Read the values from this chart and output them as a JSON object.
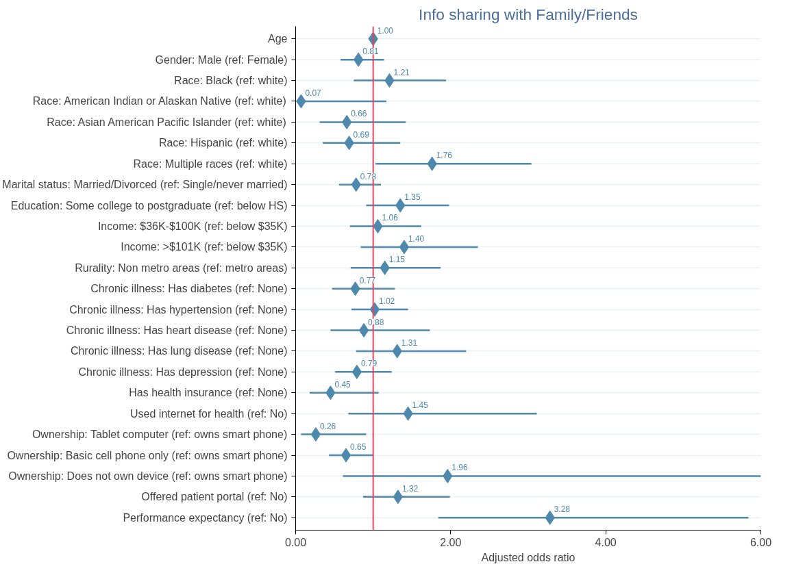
{
  "chart_data": {
    "type": "scatter",
    "orientation": "horizontal",
    "title": "Info sharing with Family/Friends",
    "xlabel": "Adjusted odds ratio",
    "categories": [
      "Age",
      "Gender: Male (ref: Female)",
      "Race: Black (ref: white)",
      "Race: American Indian or Alaskan Native (ref: white)",
      "Race: Asian American Pacific Islander (ref: white)",
      "Race: Hispanic (ref: white)",
      "Race: Multiple races (ref: white)",
      "Marital status: Married/Divorced (ref: Single/never married)",
      "Education: Some college to postgraduate (ref: below HS)",
      "Income: $36K-$100K (ref: below $35K)",
      "Income: >$101K (ref: below $35K)",
      "Rurality: Non metro areas (ref: metro areas)",
      "Chronic illness: Has diabetes (ref: None)",
      "Chronic illness: Has hypertension (ref: None)",
      "Chronic illness: Has heart disease (ref: None)",
      "Chronic illness: Has lung disease (ref: None)",
      "Chronic illness: Has depression (ref: None)",
      "Has health insurance (ref: None)",
      "Used internet for health (ref: No)",
      "Ownership: Tablet computer (ref: owns smart phone)",
      "Ownership: Basic cell phone only (ref: owns smart phone)",
      "Ownership: Does not own device (ref: owns smart phone)",
      "Offered patient portal (ref: No)",
      "Performance expectancy (ref: No)"
    ],
    "values": [
      1.0,
      0.81,
      1.21,
      0.07,
      0.66,
      0.69,
      1.76,
      0.78,
      1.35,
      1.06,
      1.4,
      1.15,
      0.77,
      1.02,
      0.88,
      1.31,
      0.79,
      0.45,
      1.45,
      0.26,
      0.65,
      1.96,
      1.32,
      3.28
    ],
    "value_labels": [
      "1.00",
      "0.81",
      "1.21",
      "0.07",
      "0.66",
      "0.69",
      "1.76",
      "0.78",
      "1.35",
      "1.06",
      "1.40",
      "1.15",
      "0.77",
      "1.02",
      "0.88",
      "1.31",
      "0.79",
      "0.45",
      "1.45",
      "0.26",
      "0.65",
      "1.96",
      "1.32",
      "3.28"
    ],
    "errors": [
      null,
      [
        0.58,
        1.14
      ],
      [
        0.75,
        1.94
      ],
      [
        0.01,
        1.17
      ],
      [
        0.31,
        1.42
      ],
      [
        0.35,
        1.35
      ],
      [
        1.03,
        3.04
      ],
      [
        0.56,
        1.1
      ],
      [
        0.91,
        1.98
      ],
      [
        0.7,
        1.62
      ],
      [
        0.84,
        2.35
      ],
      [
        0.71,
        1.87
      ],
      [
        0.47,
        1.28
      ],
      [
        0.72,
        1.45
      ],
      [
        0.45,
        1.73
      ],
      [
        0.78,
        2.2
      ],
      [
        0.51,
        1.24
      ],
      [
        0.18,
        1.07
      ],
      [
        0.68,
        3.11
      ],
      [
        0.07,
        0.91
      ],
      [
        0.43,
        1.0
      ],
      [
        0.61,
        6.0
      ],
      [
        0.87,
        1.99
      ],
      [
        1.84,
        5.84
      ]
    ],
    "color": "#4d88ad",
    "marker": "diamond",
    "grid": "y",
    "xlim": [
      0,
      6
    ],
    "xticks": [
      {
        "value": 0,
        "label": "0.00"
      },
      {
        "value": 2,
        "label": "2.00"
      },
      {
        "value": 4,
        "label": "4.00"
      },
      {
        "value": 6,
        "label": "6.00"
      }
    ],
    "ref_lines": [
      {
        "axis": "x",
        "value": 1,
        "color": "#e8425c"
      }
    ]
  }
}
